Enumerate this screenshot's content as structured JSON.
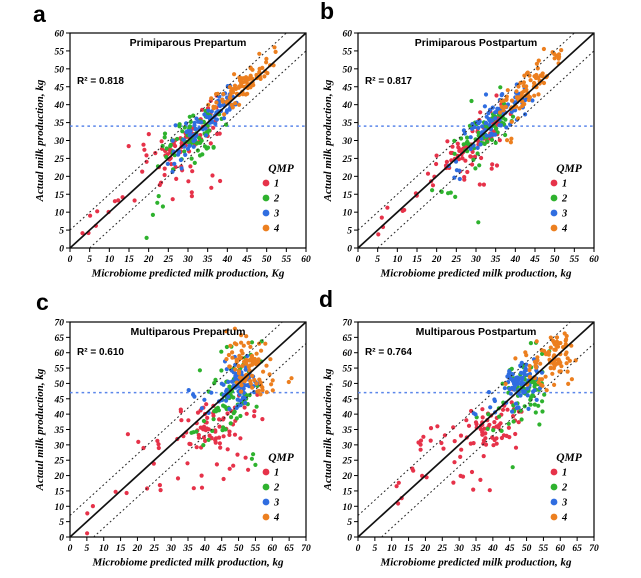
{
  "figure": {
    "background": "#ffffff",
    "legend": {
      "title": "QMP",
      "items": [
        {
          "label": "1",
          "color": "#e63249"
        },
        {
          "label": "2",
          "color": "#2eb22e"
        },
        {
          "label": "3",
          "color": "#2f6de0"
        },
        {
          "label": "4",
          "color": "#ec7f1f"
        }
      ]
    },
    "styles": {
      "identity_line_color": "#111111",
      "band_line_color": "#222222",
      "threshold_line_color": "#5b86ea",
      "axis_color": "#000000",
      "text_color": "#000000"
    }
  },
  "chart_data": [
    {
      "type": "scatter",
      "panel_label": "a",
      "title": "Primiparous Prepartum",
      "r2_label": "R² = 0.818",
      "xlabel": "Microbiome predicted milk production, Kg",
      "ylabel": "Actual milk production, kg",
      "xlim": [
        0,
        60
      ],
      "ylim": [
        0,
        60
      ],
      "tick_step": 5,
      "grid": false,
      "legend_title": "QMP",
      "legend_position": "inside-right",
      "identity_line": true,
      "band_offset": 5,
      "threshold_y": 34,
      "series": [
        {
          "name": "1",
          "color": "#e63249",
          "clusters": [
            {
              "n": 72,
              "t0": 23,
              "t1": 37,
              "xs": 1.8,
              "ys": 2.8
            },
            {
              "n": 14,
              "t0": 3,
              "t1": 22,
              "xs": 1.5,
              "ys": 2.6
            },
            {
              "n": 10,
              "cx": 29,
              "cy": 18,
              "sx": 4.5,
              "sy": 2.2
            },
            {
              "n": 5,
              "cx": 20,
              "cy": 30,
              "sx": 2.5,
              "sy": 1.6
            }
          ]
        },
        {
          "name": "2",
          "color": "#2eb22e",
          "clusters": [
            {
              "n": 66,
              "t0": 25,
              "t1": 38,
              "xs": 1.8,
              "ys": 2.7
            },
            {
              "n": 5,
              "cx": 23,
              "cy": 12,
              "sx": 1.8,
              "sy": 3.2
            },
            {
              "n": 8,
              "cx": 34,
              "cy": 28,
              "sx": 2.4,
              "sy": 1.8
            }
          ]
        },
        {
          "name": "3",
          "color": "#2f6de0",
          "clusters": [
            {
              "n": 85,
              "t0": 29,
              "t1": 42,
              "xs": 1.6,
              "ys": 2.2,
              "dy": 0.5
            },
            {
              "n": 6,
              "cx": 27.5,
              "cy": 23,
              "sx": 1.8,
              "sy": 1.8
            }
          ]
        },
        {
          "name": "4",
          "color": "#ec7f1f",
          "clusters": [
            {
              "n": 75,
              "t0": 37,
              "t1": 47,
              "xs": 1.5,
              "ys": 1.8,
              "dy": 1.6
            },
            {
              "n": 12,
              "t0": 47,
              "t1": 52,
              "xs": 1.3,
              "ys": 1.8,
              "dy": 2
            }
          ]
        }
      ]
    },
    {
      "type": "scatter",
      "panel_label": "b",
      "title": "Primiparous Postpartum",
      "r2_label": "R² = 0.817",
      "xlabel": "Microbiome predicted milk production, kg",
      "ylabel": "Actual milk production, kg",
      "xlim": [
        0,
        60
      ],
      "ylim": [
        0,
        60
      ],
      "tick_step": 5,
      "grid": false,
      "legend_title": "QMP",
      "legend_position": "inside-right",
      "identity_line": true,
      "band_offset": 5,
      "threshold_y": 34,
      "series": [
        {
          "name": "1",
          "color": "#e63249",
          "clusters": [
            {
              "n": 70,
              "t0": 24,
              "t1": 37,
              "xs": 1.8,
              "ys": 2.8
            },
            {
              "n": 15,
              "t0": 5,
              "t1": 23,
              "xs": 1.7,
              "ys": 2.7
            },
            {
              "n": 9,
              "cx": 30,
              "cy": 20,
              "sx": 3.5,
              "sy": 2.3
            }
          ]
        },
        {
          "name": "2",
          "color": "#2eb22e",
          "clusters": [
            {
              "n": 64,
              "t0": 26,
              "t1": 38,
              "xs": 1.8,
              "ys": 2.6
            },
            {
              "n": 6,
              "cx": 22,
              "cy": 15,
              "sx": 2,
              "sy": 1.6
            },
            {
              "n": 1,
              "cx": 31,
              "cy": 6.8,
              "sx": 0.4,
              "sy": 0.4
            }
          ]
        },
        {
          "name": "3",
          "color": "#2f6de0",
          "clusters": [
            {
              "n": 84,
              "t0": 29,
              "t1": 42,
              "xs": 1.6,
              "ys": 2.3,
              "dy": 0.6
            },
            {
              "n": 6,
              "cx": 25,
              "cy": 22,
              "sx": 2,
              "sy": 1.8
            }
          ]
        },
        {
          "name": "4",
          "color": "#ec7f1f",
          "clusters": [
            {
              "n": 70,
              "t0": 37,
              "t1": 47,
              "xs": 1.5,
              "ys": 1.9,
              "dy": 1.6
            },
            {
              "n": 12,
              "t0": 47,
              "t1": 52,
              "xs": 1.3,
              "ys": 1.8,
              "dy": 2
            },
            {
              "n": 4,
              "cx": 39,
              "cy": 31.5,
              "sx": 2,
              "sy": 1.4
            }
          ]
        }
      ]
    },
    {
      "type": "scatter",
      "panel_label": "c",
      "title": "Multiparous Prepartum",
      "r2_label": "R² = 0.610",
      "xlabel": "Microbiome predicted milk production, kg",
      "ylabel": "Actaul milk production, kg",
      "xlim": [
        0,
        70
      ],
      "ylim": [
        0,
        70
      ],
      "tick_step": 5,
      "grid": false,
      "legend_title": "QMP",
      "legend_position": "inside-right",
      "identity_line": true,
      "band_offset": 7,
      "threshold_y": 47,
      "series": [
        {
          "name": "1",
          "color": "#e63249",
          "clusters": [
            {
              "n": 62,
              "cx": 42,
              "cy": 35,
              "sx": 4.8,
              "sy": 4.6
            },
            {
              "n": 9,
              "t0": 5,
              "t1": 30,
              "xs": 2.5,
              "ys": 3.4
            },
            {
              "n": 10,
              "cx": 44,
              "cy": 20,
              "sx": 5,
              "sy": 3.4
            },
            {
              "n": 7,
              "cx": 25,
              "cy": 32,
              "sx": 3.6,
              "sy": 2.6
            },
            {
              "n": 9,
              "cx": 50,
              "cy": 43,
              "sx": 3,
              "sy": 2.6
            }
          ]
        },
        {
          "name": "2",
          "color": "#2eb22e",
          "clusters": [
            {
              "n": 64,
              "cx": 48,
              "cy": 47,
              "sx": 3.6,
              "sy": 5.4
            },
            {
              "n": 9,
              "cx": 41,
              "cy": 35,
              "sx": 3.4,
              "sy": 3
            },
            {
              "n": 3,
              "cx": 55,
              "cy": 24,
              "sx": 2.4,
              "sy": 1.6
            },
            {
              "n": 7,
              "cx": 55,
              "cy": 60,
              "sx": 2.6,
              "sy": 2.6
            }
          ]
        },
        {
          "name": "3",
          "color": "#2f6de0",
          "clusters": [
            {
              "n": 74,
              "cx": 50,
              "cy": 50,
              "sx": 2.3,
              "sy": 3.6
            },
            {
              "n": 7,
              "cx": 42,
              "cy": 44,
              "sx": 3,
              "sy": 2.4
            },
            {
              "n": 2,
              "cx": 36,
              "cy": 47,
              "sx": 1.4,
              "sy": 1.4
            }
          ]
        },
        {
          "name": "4",
          "color": "#ec7f1f",
          "clusters": [
            {
              "n": 66,
              "cx": 52.5,
              "cy": 57,
              "sx": 3,
              "sy": 3.6
            },
            {
              "n": 14,
              "cx": 55,
              "cy": 50,
              "sx": 3.6,
              "sy": 2.4
            },
            {
              "n": 5,
              "cx": 62,
              "cy": 49,
              "sx": 2.6,
              "sy": 2.6
            },
            {
              "n": 5,
              "cx": 47,
              "cy": 64,
              "sx": 2,
              "sy": 2
            }
          ]
        }
      ]
    },
    {
      "type": "scatter",
      "panel_label": "d",
      "title": "Multiparous Postpartum",
      "r2_label": "R² = 0.764",
      "xlabel": "Microbiome predicted milk production, kg",
      "ylabel": "Actual milk production, kg",
      "xlim": [
        0,
        70
      ],
      "ylim": [
        0,
        70
      ],
      "tick_step": 5,
      "grid": false,
      "legend_title": "QMP",
      "legend_position": "inside-right",
      "identity_line": true,
      "band_offset": 7,
      "threshold_y": 47,
      "series": [
        {
          "name": "1",
          "color": "#e63249",
          "clusters": [
            {
              "n": 56,
              "cx": 38.5,
              "cy": 35,
              "sx": 4.2,
              "sy": 3.6
            },
            {
              "n": 10,
              "t0": 8,
              "t1": 28,
              "xs": 2,
              "ys": 3
            },
            {
              "n": 9,
              "cx": 33,
              "cy": 20,
              "sx": 2.6,
              "sy": 3.6
            },
            {
              "n": 9,
              "cx": 21,
              "cy": 32,
              "sx": 3.4,
              "sy": 2.6
            },
            {
              "n": 12,
              "cx": 45,
              "cy": 42,
              "sx": 2.6,
              "sy": 2.6
            }
          ]
        },
        {
          "name": "2",
          "color": "#2eb22e",
          "clusters": [
            {
              "n": 66,
              "cx": 49,
              "cy": 48,
              "sx": 3.4,
              "sy": 4.4
            },
            {
              "n": 8,
              "cx": 42,
              "cy": 38,
              "sx": 3,
              "sy": 2.6
            },
            {
              "n": 1,
              "cx": 46,
              "cy": 23,
              "sx": 0.5,
              "sy": 0.5
            },
            {
              "n": 6,
              "cx": 55,
              "cy": 59,
              "sx": 2.6,
              "sy": 2.6
            }
          ]
        },
        {
          "name": "3",
          "color": "#2f6de0",
          "clusters": [
            {
              "n": 72,
              "cx": 49,
              "cy": 50,
              "sx": 2.8,
              "sy": 3.3
            },
            {
              "n": 6,
              "cx": 41,
              "cy": 43,
              "sx": 2.3,
              "sy": 2.3
            },
            {
              "n": 2,
              "cx": 33,
              "cy": 41,
              "sx": 1.4,
              "sy": 1.4
            }
          ]
        },
        {
          "name": "4",
          "color": "#ec7f1f",
          "clusters": [
            {
              "n": 74,
              "cx": 57,
              "cy": 58.5,
              "sx": 3.3,
              "sy": 4
            },
            {
              "n": 10,
              "cx": 52,
              "cy": 50,
              "sx": 2.6,
              "sy": 2.6
            },
            {
              "n": 7,
              "cx": 63,
              "cy": 62,
              "sx": 2,
              "sy": 2.6
            }
          ]
        }
      ]
    }
  ]
}
